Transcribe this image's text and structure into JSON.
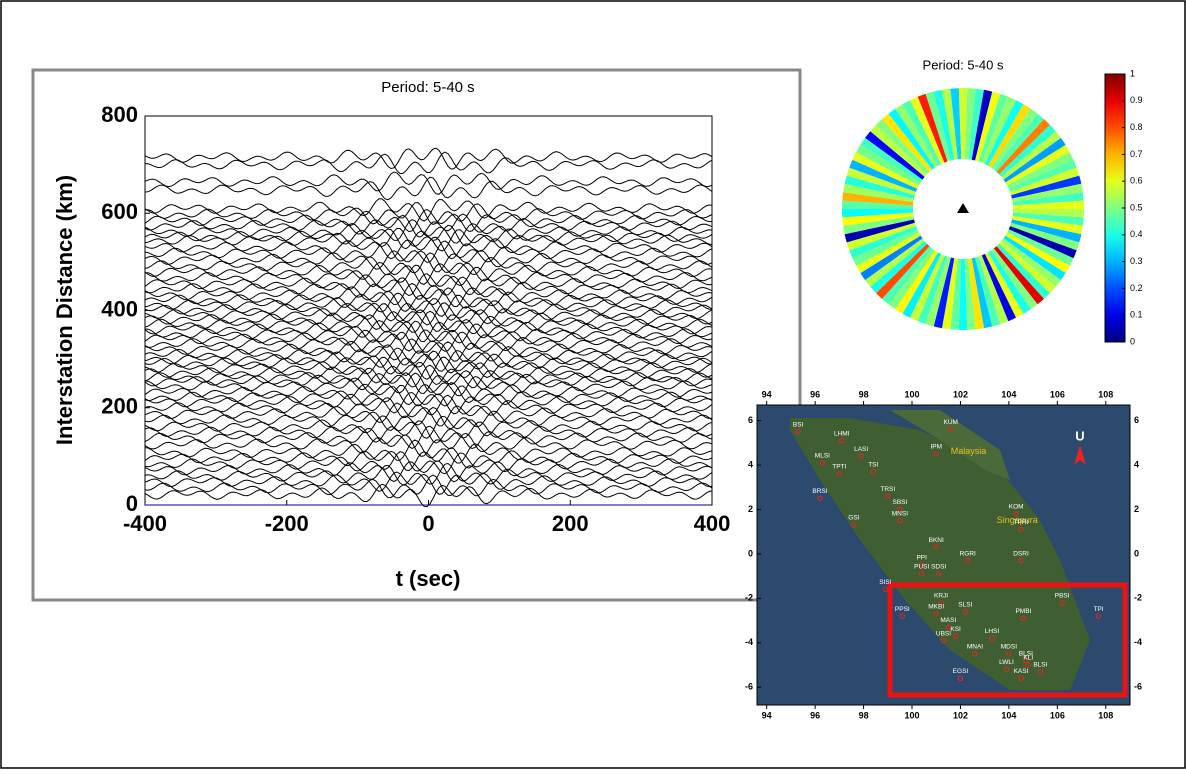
{
  "chart_data": [
    {
      "type": "traces",
      "title": "Period: 5-40 s",
      "x_label": "t (sec)",
      "y_label": "Interstation Distance (km)",
      "xlim": [
        -400,
        400
      ],
      "xticks": [
        -400,
        -200,
        0,
        200,
        400
      ],
      "ylim": [
        0,
        800
      ],
      "yticks": [
        0,
        200,
        400,
        600,
        800
      ],
      "color": "#000000",
      "reference_color": "#0000cc",
      "reference": 0,
      "distances": [
        22,
        35,
        48,
        60,
        72,
        85,
        96,
        108,
        125,
        138,
        150,
        162,
        175,
        188,
        200,
        212,
        222,
        232,
        245,
        255,
        262,
        272,
        282,
        292,
        300,
        310,
        320,
        332,
        342,
        352,
        362,
        372,
        382,
        392,
        402,
        412,
        422,
        432,
        445,
        455,
        468,
        480,
        492,
        505,
        518,
        530,
        545,
        552,
        562,
        575,
        585,
        598,
        610,
        648,
        665,
        700,
        715
      ]
    },
    {
      "type": "ring",
      "title": "Period: 5-40 s",
      "colorbar_ticks": [
        0,
        0.1,
        0.2,
        0.3,
        0.4,
        0.5,
        0.6,
        0.7,
        0.8,
        0.9,
        1
      ],
      "values": [
        0.55,
        0.45,
        0.6,
        0.3,
        0.5,
        0.05,
        0.48,
        0.62,
        0.35,
        0.52,
        0.58,
        0.42,
        0.9,
        0.5,
        0.4,
        0.6,
        0.1,
        0.55,
        0.45,
        0.32,
        0.65,
        0.5,
        0.38,
        0.47,
        0.6,
        0.15,
        0.52,
        0.44,
        0.57,
        0.36,
        0.63,
        0.5,
        0.45,
        0.8,
        0.4,
        0.55,
        0.25,
        0.6,
        0.48,
        0.42,
        0.58,
        0.05,
        0.5,
        0.62,
        0.38,
        0.46,
        0.7,
        0.53,
        0.41,
        0.57,
        0.3,
        0.6,
        0.49,
        0.44,
        0.12,
        0.56,
        0.5,
        0.65,
        0.37,
        0.52,
        0.45,
        0.6,
        0.85,
        0.48,
        0.4,
        0.55,
        0.33,
        0.58,
        0.5,
        0.43,
        0.07,
        0.61,
        0.47,
        0.52,
        0.39,
        0.66,
        0.5,
        0.45,
        0.75,
        0.42,
        0.55,
        0.28,
        0.6,
        0.5,
        0.46,
        0.58,
        0.18,
        0.52,
        0.44,
        0.6
      ]
    },
    {
      "type": "map",
      "xlim": [
        93.6,
        109
      ],
      "ylim": [
        -6.8,
        6.7
      ],
      "xticks": [
        94,
        96,
        98,
        100,
        102,
        104,
        106,
        108
      ],
      "yticks": [
        -6,
        -4,
        -2,
        0,
        2,
        4,
        6
      ],
      "places": [
        {
          "label": "Malaysia",
          "lon": 101.6,
          "lat": 4.6
        },
        {
          "label": "Singapura",
          "lon": 103.5,
          "lat": 1.5
        }
      ],
      "north_label": "U",
      "stations": [
        {
          "name": "BSI",
          "lon": 95.3,
          "lat": 5.5
        },
        {
          "name": "LHMI",
          "lon": 97.1,
          "lat": 5.1
        },
        {
          "name": "LASI",
          "lon": 97.9,
          "lat": 4.4
        },
        {
          "name": "MLSI",
          "lon": 96.3,
          "lat": 4.1
        },
        {
          "name": "TPTI",
          "lon": 97.0,
          "lat": 3.6
        },
        {
          "name": "TSI",
          "lon": 98.4,
          "lat": 3.7
        },
        {
          "name": "KUM",
          "lon": 101.6,
          "lat": 5.6
        },
        {
          "name": "IPM",
          "lon": 101.0,
          "lat": 4.5
        },
        {
          "name": "BRSI",
          "lon": 96.2,
          "lat": 2.5
        },
        {
          "name": "GSI",
          "lon": 97.6,
          "lat": 1.3
        },
        {
          "name": "TRSI",
          "lon": 99.0,
          "lat": 2.6
        },
        {
          "name": "SBSI",
          "lon": 99.5,
          "lat": 2.0
        },
        {
          "name": "MNSI",
          "lon": 99.5,
          "lat": 1.5
        },
        {
          "name": "BKNI",
          "lon": 101.0,
          "lat": 0.3
        },
        {
          "name": "KOM",
          "lon": 104.3,
          "lat": 1.8
        },
        {
          "name": "TPRI",
          "lon": 104.5,
          "lat": 1.1
        },
        {
          "name": "PPI",
          "lon": 100.4,
          "lat": -0.5
        },
        {
          "name": "PUSI",
          "lon": 100.4,
          "lat": -0.9
        },
        {
          "name": "SDSI",
          "lon": 101.1,
          "lat": -0.9
        },
        {
          "name": "RGRI",
          "lon": 102.3,
          "lat": -0.3
        },
        {
          "name": "DSRI",
          "lon": 104.5,
          "lat": -0.3
        },
        {
          "name": "SISI",
          "lon": 98.9,
          "lat": -1.6
        },
        {
          "name": "PPSI",
          "lon": 99.6,
          "lat": -2.8
        },
        {
          "name": "KRJI",
          "lon": 101.2,
          "lat": -2.2
        },
        {
          "name": "MKBI",
          "lon": 101.0,
          "lat": -2.7
        },
        {
          "name": "SLSI",
          "lon": 102.2,
          "lat": -2.6
        },
        {
          "name": "PMBI",
          "lon": 104.6,
          "lat": -2.9
        },
        {
          "name": "PBSI",
          "lon": 106.2,
          "lat": -2.2
        },
        {
          "name": "TPI",
          "lon": 107.7,
          "lat": -2.8
        },
        {
          "name": "MASI",
          "lon": 101.5,
          "lat": -3.3
        },
        {
          "name": "KSI",
          "lon": 101.8,
          "lat": -3.7
        },
        {
          "name": "UBSI",
          "lon": 101.3,
          "lat": -3.9
        },
        {
          "name": "LHSI",
          "lon": 103.3,
          "lat": -3.8
        },
        {
          "name": "MNAI",
          "lon": 102.6,
          "lat": -4.5
        },
        {
          "name": "MDSI",
          "lon": 104.0,
          "lat": -4.5
        },
        {
          "name": "BLSI",
          "lon": 104.7,
          "lat": -4.8
        },
        {
          "name": "KLI",
          "lon": 104.8,
          "lat": -5.0
        },
        {
          "name": "LWLI",
          "lon": 103.9,
          "lat": -5.2
        },
        {
          "name": "KASI",
          "lon": 104.5,
          "lat": -5.6
        },
        {
          "name": "BLSI",
          "lon": 105.3,
          "lat": -5.3
        },
        {
          "name": "EGSI",
          "lon": 102.0,
          "lat": -5.6
        }
      ]
    }
  ]
}
